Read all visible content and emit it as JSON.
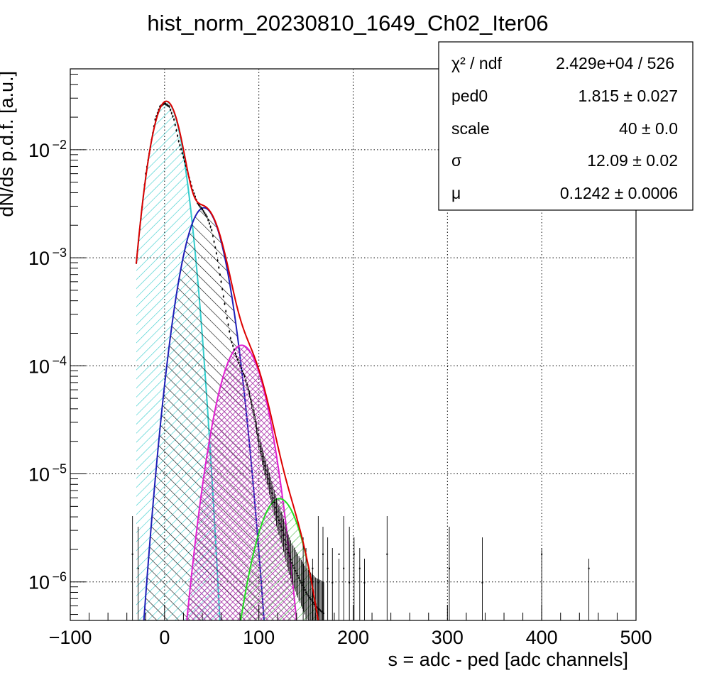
{
  "chart_data": {
    "type": "line",
    "title": "hist_norm_20230810_1649_Ch02_Iter06",
    "xlabel": "s = adc - ped [adc channels]",
    "ylabel": "dN/ds p.d.f. [a.u.]",
    "xlim": [
      -100,
      500
    ],
    "ylim": [
      4.4e-07,
      0.056
    ],
    "yscale": "log",
    "grid": true,
    "x_ticks": [
      -100,
      0,
      100,
      200,
      300,
      400,
      500
    ],
    "x_tick_labels": [
      "−100",
      "0",
      "100",
      "200",
      "300",
      "400",
      "500"
    ],
    "y_ticks": [
      1e-06,
      1e-05,
      0.0001,
      0.001,
      0.01
    ],
    "y_tick_labels": [
      {
        "base": "10",
        "exp": "−6"
      },
      {
        "base": "10",
        "exp": "−5"
      },
      {
        "base": "10",
        "exp": "−4"
      },
      {
        "base": "10",
        "exp": "−3"
      },
      {
        "base": "10",
        "exp": "−2"
      }
    ],
    "stats_box": {
      "position": "top-right",
      "rows": [
        {
          "label": "χ² / ndf",
          "value": "2.429e+04 / 526"
        },
        {
          "label": "ped0",
          "value": "1.815 ± 0.027"
        },
        {
          "label": "scale",
          "value": "40 ± 0.0"
        },
        {
          "label": "σ",
          "value": "12.09 ± 0.02"
        },
        {
          "label": "μ",
          "value": "0.1242 ± 0.0006"
        }
      ]
    },
    "components": [
      {
        "peak": 0,
        "center": 1.8,
        "sigma": 12.09,
        "amplitude": 0.028,
        "color": "#33cccc",
        "hatch": "diagonal-down"
      },
      {
        "peak": 1,
        "center": 41.8,
        "sigma": 15.2,
        "amplitude": 0.0029,
        "color": "#1f1fb8",
        "hatch": "diagonal-up"
      },
      {
        "peak": 2,
        "center": 81.8,
        "sigma": 17.0,
        "amplitude": 0.000155,
        "color": "#e020d0",
        "hatch": "cross"
      },
      {
        "peak": 3,
        "center": 121.8,
        "sigma": 18.0,
        "amplitude": 5.9e-06,
        "color": "#22dd22",
        "hatch": "diagonal-down"
      }
    ],
    "total_fit_color": "#dd0000",
    "series": [
      {
        "x": [
          -30,
          -20,
          -10,
          -5,
          0,
          5,
          10,
          15,
          20,
          25,
          30,
          35,
          40,
          45,
          50,
          55,
          60,
          65,
          70,
          75,
          80,
          85,
          90,
          95,
          100,
          105,
          110,
          115,
          120,
          125,
          130,
          135,
          140,
          150,
          160,
          170
        ],
        "y": [
          0.0009,
          0.006,
          0.019,
          0.025,
          0.027,
          0.025,
          0.019,
          0.012,
          0.0085,
          0.006,
          0.0042,
          0.0032,
          0.0028,
          0.0024,
          0.0018,
          0.0011,
          0.0006,
          0.00032,
          0.00018,
          0.00013,
          0.0001,
          8e-05,
          5.5e-05,
          3.5e-05,
          2e-05,
          1.3e-05,
          9e-06,
          6e-06,
          4e-06,
          3e-06,
          2e-06,
          1.5e-06,
          1.2e-06,
          8e-07,
          6e-07,
          5e-07
        ]
      }
    ],
    "sparse_points_x": [
      -34,
      -28,
      147,
      150,
      157,
      163,
      168,
      173,
      178,
      185,
      190,
      196,
      201,
      207,
      212,
      236,
      302,
      337,
      400,
      450
    ]
  }
}
